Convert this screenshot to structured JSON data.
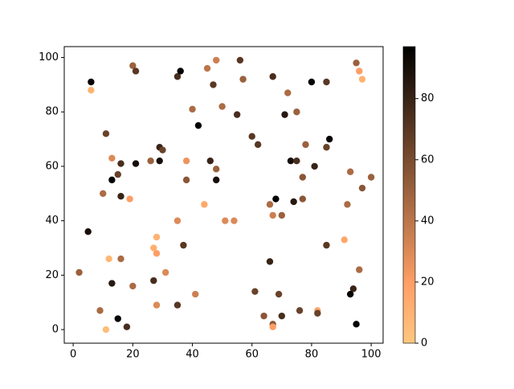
{
  "chart_data": {
    "type": "scatter",
    "x": [
      6,
      6,
      20,
      21,
      35,
      36,
      45,
      48,
      47,
      56,
      57,
      67,
      80,
      85,
      95,
      96,
      97,
      40,
      42,
      50,
      55,
      72,
      75,
      71,
      11,
      60,
      62,
      78,
      86,
      85,
      29,
      30,
      13,
      16,
      21,
      26,
      29,
      38,
      46,
      48,
      73,
      75,
      81,
      93,
      100,
      15,
      13,
      38,
      48,
      77,
      97,
      10,
      16,
      19,
      68,
      74,
      77,
      66,
      92,
      44,
      67,
      70,
      35,
      51,
      54,
      5,
      28,
      91,
      37,
      85,
      27,
      28,
      12,
      16,
      66,
      96,
      2,
      31,
      27,
      13,
      20,
      61,
      94,
      93,
      41,
      69,
      28,
      35,
      9,
      76,
      82,
      82,
      64,
      70,
      15,
      18,
      67,
      67,
      95,
      11
    ],
    "y": [
      91,
      88,
      97,
      95,
      93,
      95,
      96,
      99,
      90,
      99,
      92,
      93,
      91,
      91,
      98,
      95,
      92,
      81,
      75,
      82,
      79,
      87,
      80,
      79,
      72,
      71,
      68,
      68,
      70,
      67,
      67,
      66,
      63,
      61,
      61,
      62,
      62,
      62,
      62,
      59,
      62,
      62,
      60,
      58,
      56,
      57,
      55,
      55,
      55,
      56,
      52,
      50,
      49,
      48,
      48,
      47,
      48,
      46,
      46,
      46,
      42,
      42,
      40,
      40,
      40,
      36,
      34,
      33,
      31,
      31,
      30,
      28,
      26,
      26,
      25,
      22,
      21,
      21,
      18,
      17,
      16,
      14,
      15,
      13,
      13,
      13,
      9,
      9,
      7,
      7,
      7,
      6,
      5,
      5,
      4,
      1,
      2,
      1,
      2,
      0
    ],
    "c": [
      95,
      10,
      50,
      70,
      75,
      95,
      40,
      35,
      70,
      70,
      50,
      75,
      95,
      70,
      50,
      20,
      10,
      45,
      97,
      45,
      75,
      45,
      50,
      85,
      65,
      70,
      70,
      50,
      95,
      65,
      80,
      65,
      30,
      75,
      90,
      50,
      90,
      25,
      80,
      50,
      90,
      75,
      80,
      45,
      50,
      65,
      95,
      55,
      90,
      55,
      55,
      45,
      80,
      20,
      95,
      85,
      55,
      45,
      45,
      15,
      35,
      50,
      30,
      30,
      30,
      90,
      10,
      15,
      70,
      70,
      12,
      20,
      8,
      45,
      80,
      45,
      50,
      30,
      75,
      85,
      45,
      65,
      80,
      95,
      35,
      65,
      30,
      70,
      45,
      65,
      15,
      65,
      55,
      75,
      95,
      75,
      55,
      20,
      95,
      5
    ],
    "colormap": "copper_r",
    "xlim": [
      -3,
      104
    ],
    "ylim": [
      -5,
      104
    ],
    "xticks": [
      0,
      20,
      40,
      60,
      80,
      100
    ],
    "yticks": [
      0,
      20,
      40,
      60,
      80,
      100
    ],
    "clim": [
      0,
      97
    ],
    "cticks": [
      0,
      20,
      40,
      60,
      80
    ]
  }
}
